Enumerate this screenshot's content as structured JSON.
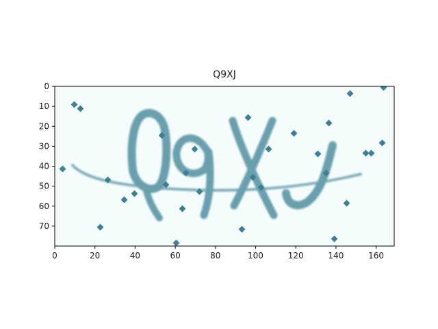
{
  "figure": {
    "title": "Q9XJ",
    "image_text": "Q9XJ",
    "background_color": "#f5fdfc",
    "ink_color": "#6a9fae",
    "dot_color": "#3f7f94",
    "xlim": [
      0,
      169
    ],
    "ylim": [
      80,
      0
    ],
    "x_ticks": [
      "0",
      "20",
      "40",
      "60",
      "80",
      "100",
      "120",
      "140",
      "160"
    ],
    "y_ticks": [
      "0",
      "10",
      "20",
      "30",
      "40",
      "50",
      "60",
      "70"
    ]
  }
}
